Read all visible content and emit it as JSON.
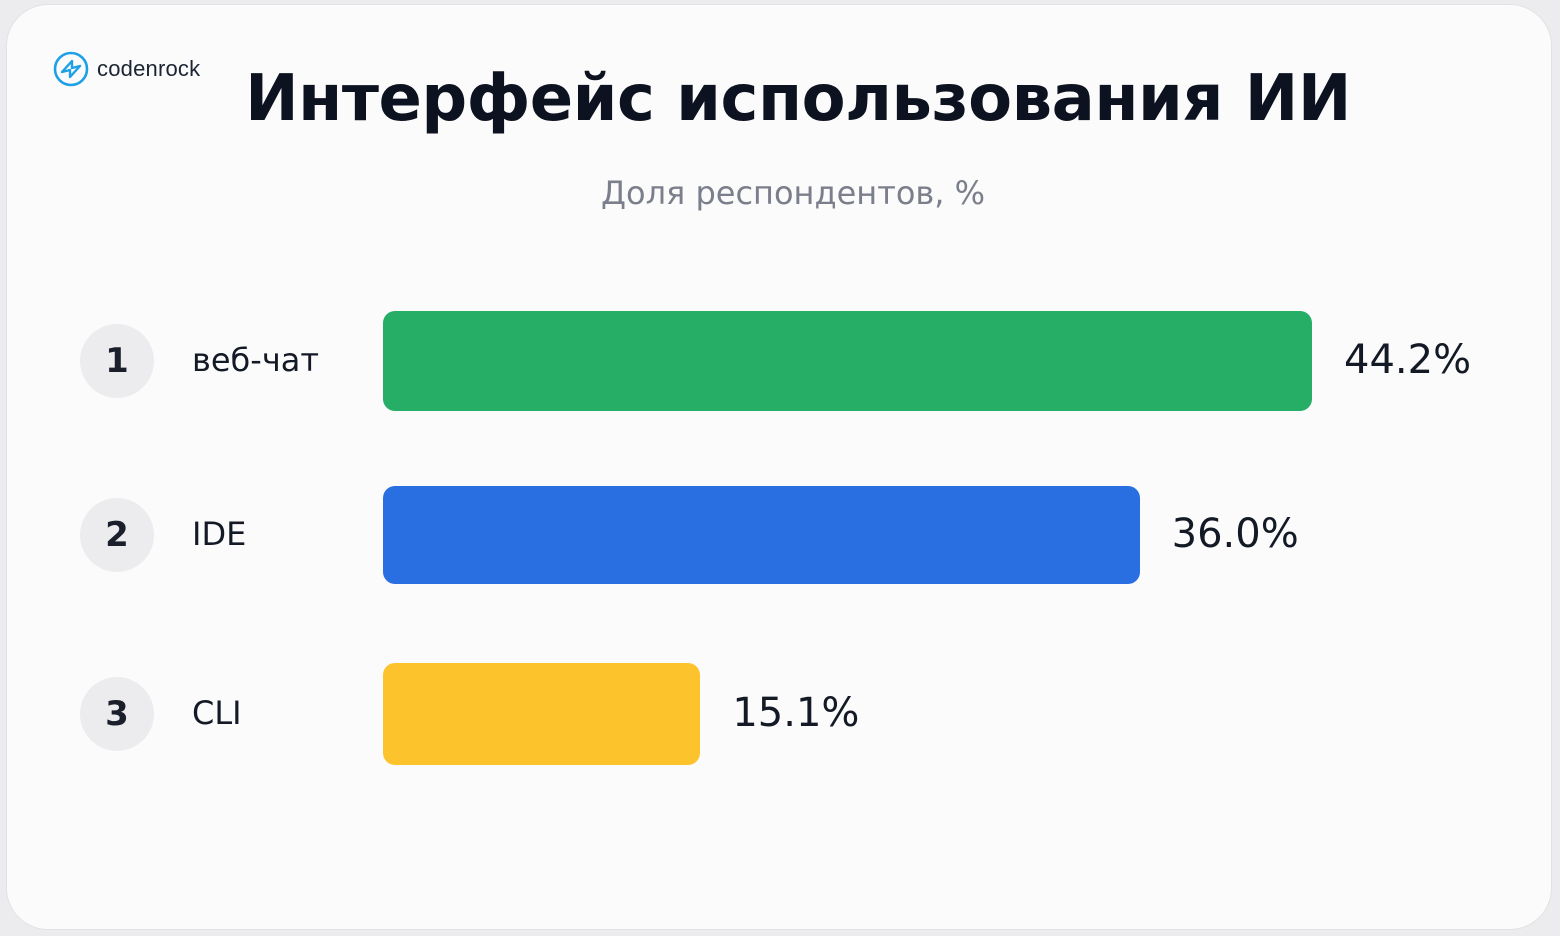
{
  "logo": {
    "text": "codenrock",
    "icon": "codenrock-logo-icon",
    "color": "#1ea0e6"
  },
  "chart_data": {
    "type": "bar",
    "orientation": "horizontal",
    "title": "Интерфейс использования ИИ",
    "subtitle": "Доля респондентов, %",
    "ranks": [
      "1",
      "2",
      "3"
    ],
    "categories": [
      "веб-чат",
      "IDE",
      "CLI"
    ],
    "values": [
      44.2,
      36.0,
      15.1
    ],
    "value_labels": [
      "44.2%",
      "36.0%",
      "15.1%"
    ],
    "colors": [
      "#26ad66",
      "#2a6fe2",
      "#fdc32c"
    ],
    "xlim": [
      0,
      44.2
    ],
    "grid": false,
    "legend": "none"
  }
}
